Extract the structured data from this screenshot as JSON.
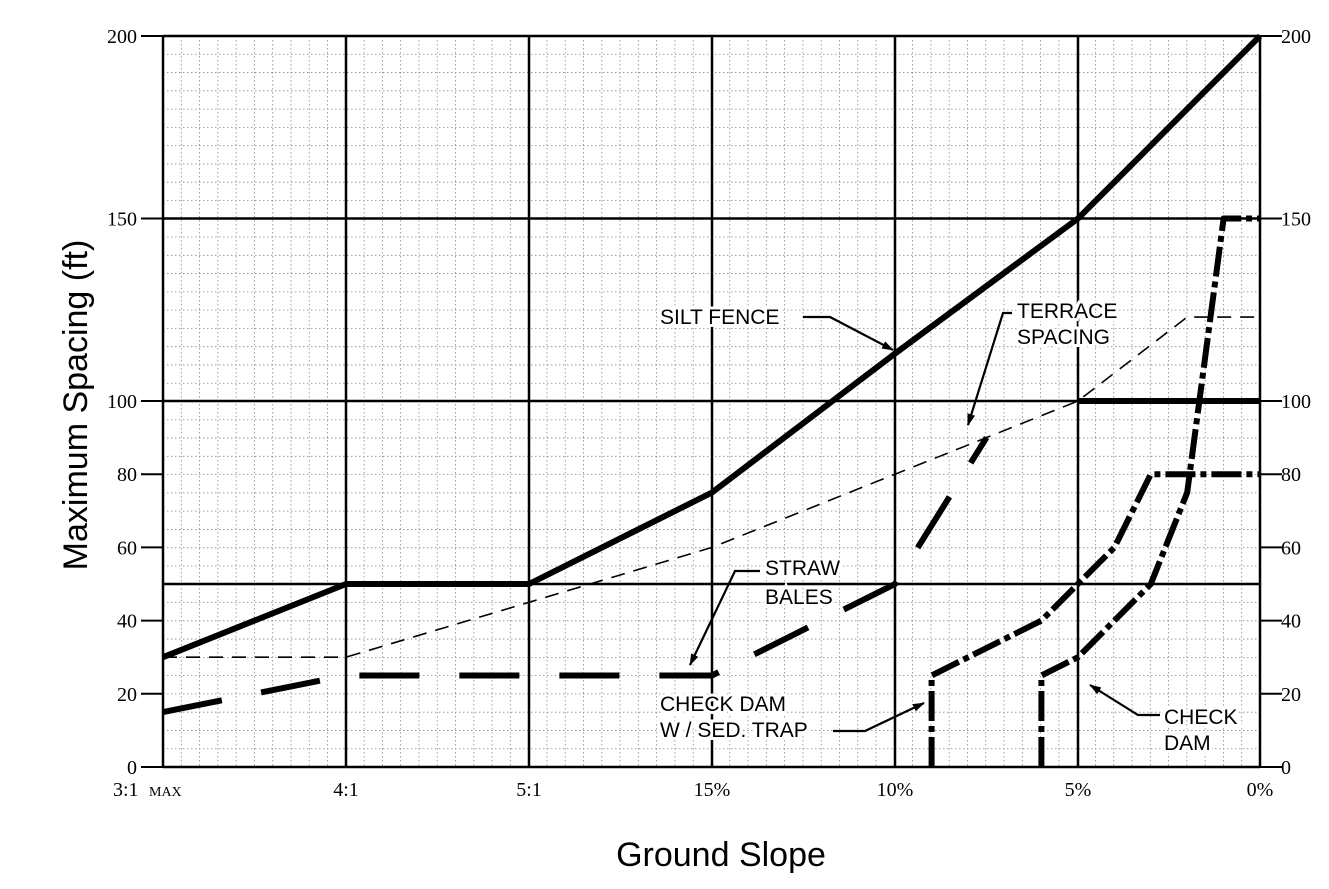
{
  "chart_data": {
    "type": "line",
    "title": "",
    "xlabel": "Ground Slope",
    "ylabel": "Maximum Spacing (ft)",
    "x_tick_labels": [
      "3:1",
      "4:1",
      "5:1",
      "15%",
      "10%",
      "5%",
      "0%"
    ],
    "x_tick_label_suffix": "MAX",
    "y_ticks_left": [
      0,
      20,
      40,
      60,
      80,
      100,
      150,
      200
    ],
    "y_ticks_right": [
      0,
      20,
      40,
      60,
      80,
      100,
      150,
      200
    ],
    "ylim": [
      0,
      200
    ],
    "grid": true,
    "series": [
      {
        "name": "SILT FENCE",
        "style": "solid-thick",
        "x": [
          "3:1",
          "4:1",
          "5:1",
          "15%",
          "10%",
          "5%",
          "0%"
        ],
        "values": [
          30,
          50,
          50,
          75,
          113,
          150,
          200
        ]
      },
      {
        "name": "TERRACE SPACING",
        "style": "dashed-thin",
        "x": [
          "3:1",
          "4:1",
          "5:1",
          "15%",
          "10%",
          "5%",
          "2%",
          "1%",
          "0%"
        ],
        "values": [
          30,
          30,
          45,
          60,
          80,
          100,
          123,
          123,
          123
        ]
      },
      {
        "name": "STRAW BALES",
        "style": "dashed-thick",
        "x": [
          "3:1",
          "4:1",
          "5:1",
          "15%",
          "10%",
          "7.5%"
        ],
        "values": [
          15,
          25,
          25,
          25,
          50,
          90
        ]
      },
      {
        "name": "CHECK DAM W / SED. TRAP",
        "style": "dash-dot-thick",
        "x": [
          "9%",
          "9%",
          "6%",
          "4%",
          "3%",
          "0%"
        ],
        "values": [
          0,
          25,
          40,
          60,
          80,
          80
        ]
      },
      {
        "name": "CHECK DAM",
        "style": "dash-dot-thick",
        "x": [
          "6%",
          "6%",
          "5%",
          "3%",
          "2%",
          "1%",
          "0%"
        ],
        "values": [
          0,
          25,
          30,
          50,
          75,
          150,
          150
        ]
      },
      {
        "name": "",
        "style": "solid-thick",
        "x": [
          "5%",
          "0%"
        ],
        "values": [
          100,
          100
        ]
      }
    ],
    "annotations": [
      {
        "lines": [
          "SILT FENCE"
        ]
      },
      {
        "lines": [
          "TERRACE",
          "SPACING"
        ]
      },
      {
        "lines": [
          "STRAW",
          "BALES"
        ]
      },
      {
        "lines": [
          "CHECK DAM",
          "W / SED. TRAP"
        ]
      },
      {
        "lines": [
          "CHECK",
          "DAM"
        ]
      }
    ]
  }
}
